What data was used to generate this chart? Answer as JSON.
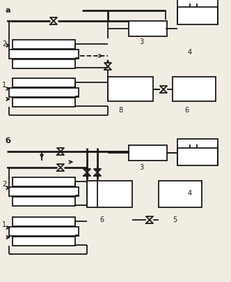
{
  "bg_color": "#f2ede3",
  "line_color": "#1a1a1a",
  "lw": 1.3,
  "lw2": 2.0,
  "fig_w": 3.32,
  "fig_h": 4.04,
  "dpi": 100
}
